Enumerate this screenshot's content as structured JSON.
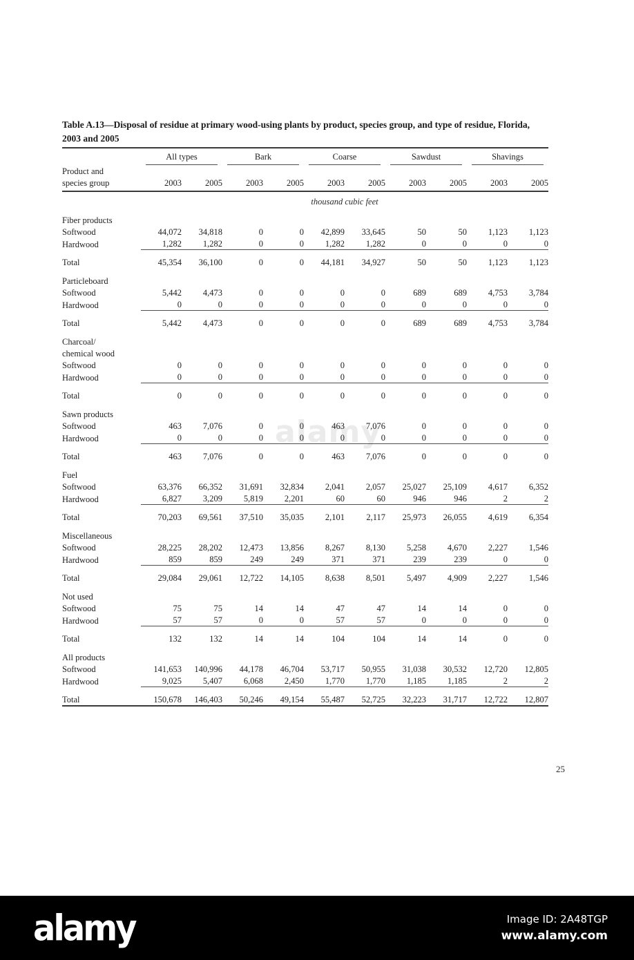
{
  "page": {
    "title_line1": "Table A.13—Disposal of residue at primary wood-using plants by product, species group, and type of residue, Florida,",
    "title_line2": "2003 and 2005",
    "page_number": "25"
  },
  "table": {
    "corner_header_line1": "Product and",
    "corner_header_line2": "species group",
    "groups": [
      "All types",
      "Bark",
      "Coarse",
      "Sawdust",
      "Shavings"
    ],
    "years": [
      "2003",
      "2005"
    ],
    "unit": "thousand cubic feet",
    "row_labels": {
      "softwood": "Softwood",
      "hardwood": "Hardwood",
      "total": "Total"
    },
    "sections": [
      {
        "name": "Fiber products",
        "softwood": [
          "44,072",
          "34,818",
          "0",
          "0",
          "42,899",
          "33,645",
          "50",
          "50",
          "1,123",
          "1,123"
        ],
        "hardwood": [
          "1,282",
          "1,282",
          "0",
          "0",
          "1,282",
          "1,282",
          "0",
          "0",
          "0",
          "0"
        ],
        "total": [
          "45,354",
          "36,100",
          "0",
          "0",
          "44,181",
          "34,927",
          "50",
          "50",
          "1,123",
          "1,123"
        ]
      },
      {
        "name": "Particleboard",
        "softwood": [
          "5,442",
          "4,473",
          "0",
          "0",
          "0",
          "0",
          "689",
          "689",
          "4,753",
          "3,784"
        ],
        "hardwood": [
          "0",
          "0",
          "0",
          "0",
          "0",
          "0",
          "0",
          "0",
          "0",
          "0"
        ],
        "total": [
          "5,442",
          "4,473",
          "0",
          "0",
          "0",
          "0",
          "689",
          "689",
          "4,753",
          "3,784"
        ]
      },
      {
        "name": "Charcoal/",
        "name2": "chemical wood",
        "softwood": [
          "0",
          "0",
          "0",
          "0",
          "0",
          "0",
          "0",
          "0",
          "0",
          "0"
        ],
        "hardwood": [
          "0",
          "0",
          "0",
          "0",
          "0",
          "0",
          "0",
          "0",
          "0",
          "0"
        ],
        "total": [
          "0",
          "0",
          "0",
          "0",
          "0",
          "0",
          "0",
          "0",
          "0",
          "0"
        ]
      },
      {
        "name": "Sawn products",
        "softwood": [
          "463",
          "7,076",
          "0",
          "0",
          "463",
          "7,076",
          "0",
          "0",
          "0",
          "0"
        ],
        "hardwood": [
          "0",
          "0",
          "0",
          "0",
          "0",
          "0",
          "0",
          "0",
          "0",
          "0"
        ],
        "total": [
          "463",
          "7,076",
          "0",
          "0",
          "463",
          "7,076",
          "0",
          "0",
          "0",
          "0"
        ]
      },
      {
        "name": "Fuel",
        "softwood": [
          "63,376",
          "66,352",
          "31,691",
          "32,834",
          "2,041",
          "2,057",
          "25,027",
          "25,109",
          "4,617",
          "6,352"
        ],
        "hardwood": [
          "6,827",
          "3,209",
          "5,819",
          "2,201",
          "60",
          "60",
          "946",
          "946",
          "2",
          "2"
        ],
        "total": [
          "70,203",
          "69,561",
          "37,510",
          "35,035",
          "2,101",
          "2,117",
          "25,973",
          "26,055",
          "4,619",
          "6,354"
        ]
      },
      {
        "name": "Miscellaneous",
        "softwood": [
          "28,225",
          "28,202",
          "12,473",
          "13,856",
          "8,267",
          "8,130",
          "5,258",
          "4,670",
          "2,227",
          "1,546"
        ],
        "hardwood": [
          "859",
          "859",
          "249",
          "249",
          "371",
          "371",
          "239",
          "239",
          "0",
          "0"
        ],
        "total": [
          "29,084",
          "29,061",
          "12,722",
          "14,105",
          "8,638",
          "8,501",
          "5,497",
          "4,909",
          "2,227",
          "1,546"
        ]
      },
      {
        "name": "Not used",
        "softwood": [
          "75",
          "75",
          "14",
          "14",
          "47",
          "47",
          "14",
          "14",
          "0",
          "0"
        ],
        "hardwood": [
          "57",
          "57",
          "0",
          "0",
          "57",
          "57",
          "0",
          "0",
          "0",
          "0"
        ],
        "total": [
          "132",
          "132",
          "14",
          "14",
          "104",
          "104",
          "14",
          "14",
          "0",
          "0"
        ]
      },
      {
        "name": "All products",
        "softwood": [
          "141,653",
          "140,996",
          "44,178",
          "46,704",
          "53,717",
          "50,955",
          "31,038",
          "30,532",
          "12,720",
          "12,805"
        ],
        "hardwood": [
          "9,025",
          "5,407",
          "6,068",
          "2,450",
          "1,770",
          "1,770",
          "1,185",
          "1,185",
          "2",
          "2"
        ],
        "total": [
          "150,678",
          "146,403",
          "50,246",
          "49,154",
          "55,487",
          "52,725",
          "32,223",
          "31,717",
          "12,722",
          "12,807"
        ]
      }
    ]
  },
  "watermark": {
    "ghost_text": "alamy"
  },
  "footer": {
    "logo": "alamy",
    "image_id": "Image ID: 2A48TGP",
    "url": "www.alamy.com",
    "bg_color": "#000000",
    "text_color": "#ffffff"
  }
}
